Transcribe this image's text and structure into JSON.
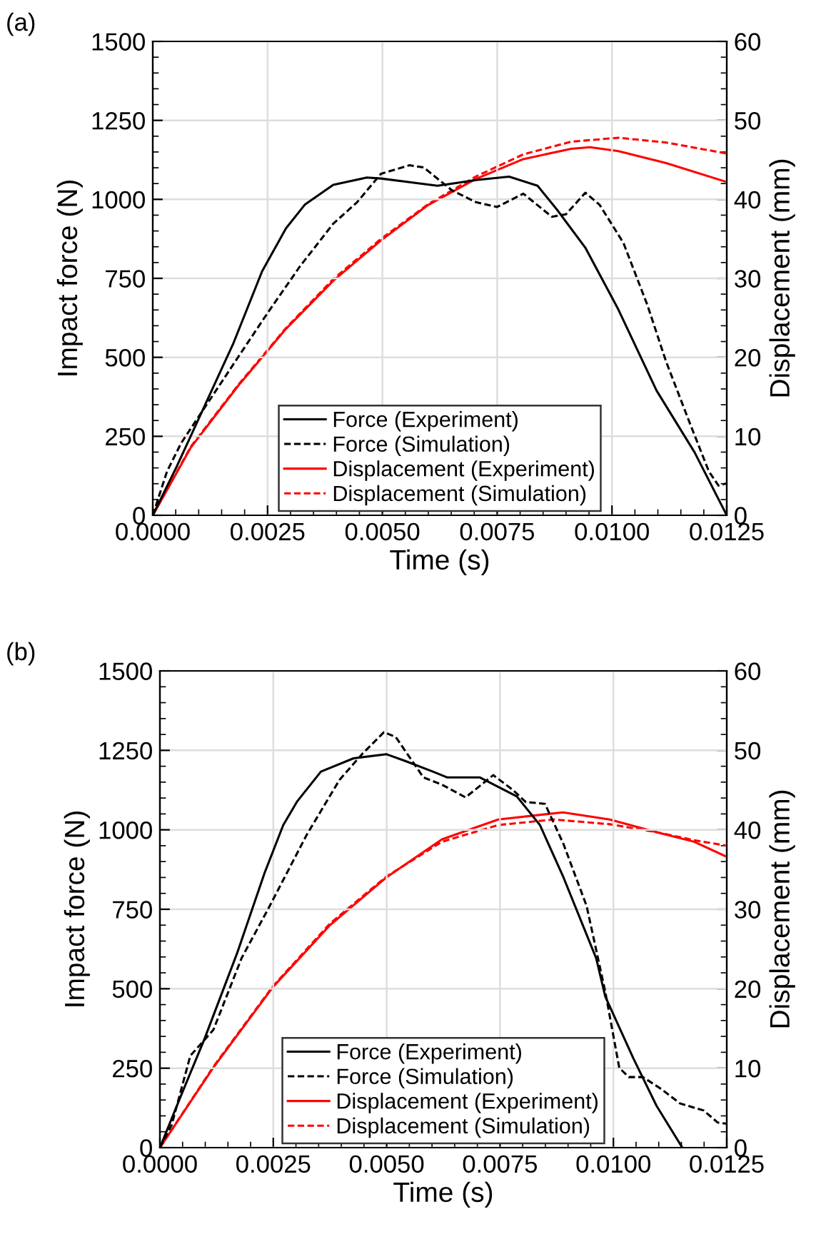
{
  "chart_data": [
    {
      "type": "line",
      "title": "(a)",
      "xlabel": "Time (s)",
      "ylabel": "Impact force (N)",
      "y2label": "Displacement (mm)",
      "xlim": [
        0,
        0.0125
      ],
      "xticks": [
        {
          "value": 0,
          "label": "0.0000"
        },
        {
          "value": 0.0025,
          "label": "0.0025"
        },
        {
          "value": 0.005,
          "label": "0.0050"
        },
        {
          "value": 0.0075,
          "label": "0.0075"
        },
        {
          "value": 0.01,
          "label": "0.0100"
        },
        {
          "value": 0.0125,
          "label": "0.0125"
        }
      ],
      "ylim": [
        0,
        1500
      ],
      "yticks": [
        0,
        250,
        500,
        750,
        1000,
        1250,
        1500
      ],
      "y2lim": [
        0,
        60
      ],
      "y2ticks": [
        0,
        10,
        20,
        30,
        40,
        50,
        60
      ],
      "grid": true,
      "legend": "bottom",
      "marker": "none",
      "series": [
        {
          "name": "Force (Experiment)",
          "color": "#000000",
          "line_style": "solid",
          "x": [
            0,
            0.00052,
            0.00114,
            0.00176,
            0.00238,
            0.0029,
            0.00331,
            0.00393,
            0.00466,
            0.00497,
            0.0062,
            0.00704,
            0.00776,
            0.00838,
            0.0088,
            0.00942,
            0.01014,
            0.01097,
            0.0118,
            0.0125
          ],
          "values": [
            0,
            154,
            350,
            546,
            772,
            908,
            983,
            1046,
            1069,
            1066,
            1043,
            1061,
            1072,
            1043,
            968,
            847,
            651,
            395,
            199,
            0
          ]
        },
        {
          "name": "Force (Simulation)",
          "color": "#000000",
          "line_style": "dashed",
          "x": [
            0,
            0.00031,
            0.00062,
            0.00124,
            0.00186,
            0.00248,
            0.0032,
            0.00393,
            0.00445,
            0.00497,
            0.00559,
            0.0059,
            0.00652,
            0.00704,
            0.0075,
            0.00807,
            0.00869,
            0.009,
            0.00942,
            0.00973,
            0.01025,
            0.01077,
            0.01118,
            0.0117,
            0.01211,
            0.01232,
            0.0125
          ],
          "values": [
            0,
            139,
            229,
            365,
            501,
            636,
            787,
            923,
            991,
            1081,
            1108,
            1101,
            1028,
            991,
            976,
            1018,
            945,
            953,
            1021,
            983,
            862,
            666,
            486,
            290,
            139,
            94,
            101
          ]
        },
        {
          "name": "Displacement (Experiment)",
          "color": "#ff0000",
          "line_style": "solid",
          "axis": "y2",
          "x": [
            0,
            0.00083,
            0.00186,
            0.0029,
            0.00393,
            0.00497,
            0.006,
            0.00704,
            0.00807,
            0.00911,
            0.00952,
            0.01014,
            0.01118,
            0.0125
          ],
          "values": [
            0,
            8.6,
            16.4,
            23.6,
            29.7,
            34.8,
            39.3,
            42.6,
            45.1,
            46.4,
            46.6,
            46.1,
            44.6,
            42.2
          ]
        },
        {
          "name": "Displacement (Simulation)",
          "color": "#ff0000",
          "line_style": "dashed",
          "axis": "y2",
          "x": [
            0,
            0.00083,
            0.00186,
            0.0029,
            0.00393,
            0.00497,
            0.006,
            0.00704,
            0.00807,
            0.00911,
            0.01014,
            0.01118,
            0.0125
          ],
          "values": [
            0,
            8.7,
            16.5,
            23.7,
            29.9,
            35.0,
            39.4,
            42.9,
            45.7,
            47.3,
            47.8,
            47.2,
            45.8
          ]
        }
      ]
    },
    {
      "type": "line",
      "title": "(b)",
      "xlabel": "Time (s)",
      "ylabel": "Impact force (N)",
      "y2label": "Displacement (mm)",
      "xlim": [
        0,
        0.0125
      ],
      "xticks": [
        {
          "value": 0,
          "label": "0.0000"
        },
        {
          "value": 0.0025,
          "label": "0.0025"
        },
        {
          "value": 0.005,
          "label": "0.0050"
        },
        {
          "value": 0.0075,
          "label": "0.0075"
        },
        {
          "value": 0.01,
          "label": "0.0100"
        },
        {
          "value": 0.0125,
          "label": "0.0125"
        }
      ],
      "ylim": [
        0,
        1500
      ],
      "yticks": [
        0,
        250,
        500,
        750,
        1000,
        1250,
        1500
      ],
      "y2lim": [
        0,
        60
      ],
      "y2ticks": [
        0,
        10,
        20,
        30,
        40,
        50,
        60
      ],
      "grid": true,
      "legend": "bottom",
      "marker": "none",
      "series": [
        {
          "name": "Force (Experiment)",
          "color": "#000000",
          "line_style": "solid",
          "x": [
            0,
            0.00046,
            0.00098,
            0.0017,
            0.00231,
            0.00272,
            0.00303,
            0.00355,
            0.00427,
            0.00499,
            0.0054,
            0.00602,
            0.00633,
            0.00705,
            0.00787,
            0.00838,
            0.0089,
            0.00962,
            0.00982,
            0.01044,
            0.01095,
            0.01152
          ],
          "values": [
            0,
            162,
            341,
            611,
            865,
            1015,
            1090,
            1183,
            1225,
            1238,
            1217,
            1183,
            1165,
            1165,
            1105,
            1015,
            850,
            596,
            476,
            281,
            132,
            0
          ]
        },
        {
          "name": "Force (Simulation)",
          "color": "#000000",
          "line_style": "dashed",
          "x": [
            0,
            0.00026,
            0.00067,
            0.00118,
            0.0018,
            0.00242,
            0.00324,
            0.00396,
            0.00447,
            0.00494,
            0.0052,
            0.00581,
            0.00622,
            0.00674,
            0.00735,
            0.00777,
            0.00807,
            0.00849,
            0.0089,
            0.00941,
            0.00982,
            0.01013,
            0.01034,
            0.01065,
            0.01106,
            0.01147,
            0.01199,
            0.0123,
            0.0125
          ],
          "values": [
            0,
            72,
            289,
            371,
            596,
            760,
            985,
            1157,
            1240,
            1307,
            1292,
            1165,
            1142,
            1102,
            1172,
            1127,
            1087,
            1082,
            955,
            760,
            491,
            251,
            222,
            222,
            184,
            139,
            117,
            79,
            75
          ]
        },
        {
          "name": "Displacement (Experiment)",
          "color": "#ff0000",
          "line_style": "solid",
          "axis": "y2",
          "x": [
            0,
            0.00118,
            0.00249,
            0.00375,
            0.00499,
            0.00622,
            0.00746,
            0.00889,
            0.00992,
            0.01095,
            0.01178,
            0.0125
          ],
          "values": [
            0,
            10.1,
            20.2,
            28.0,
            34.0,
            38.8,
            41.3,
            42.2,
            41.3,
            39.7,
            38.5,
            36.6
          ]
        },
        {
          "name": "Displacement (Simulation)",
          "color": "#ff0000",
          "line_style": "dashed",
          "axis": "y2",
          "x": [
            0,
            0.00118,
            0.00249,
            0.00375,
            0.00499,
            0.00622,
            0.00746,
            0.00869,
            0.00992,
            0.01095,
            0.01178,
            0.0125
          ],
          "values": [
            0,
            10.2,
            20.3,
            28.2,
            34.1,
            38.5,
            40.6,
            41.3,
            40.7,
            39.7,
            38.7,
            38.0
          ]
        }
      ]
    }
  ]
}
